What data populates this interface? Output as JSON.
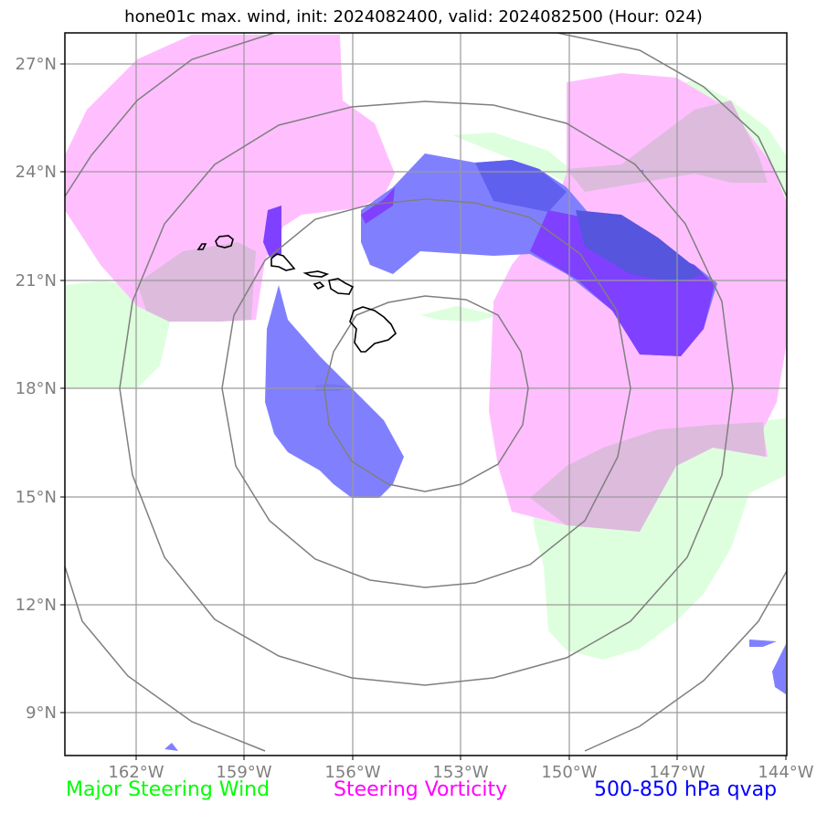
{
  "title": "hone01c max. wind, init: 2024082400, valid: 2024082500 (Hour: 024)",
  "axes": {
    "lat_labels": [
      "27°N",
      "24°N",
      "21°N",
      "18°N",
      "15°N",
      "12°N",
      "9°N"
    ],
    "lon_labels": [
      "162°W",
      "159°W",
      "156°W",
      "153°W",
      "150°W",
      "147°W",
      "144°W"
    ]
  },
  "legend": {
    "wind": "Major Steering Wind",
    "vorticity": "Steering Vorticity",
    "qvap": "500-850 hPa qvap"
  },
  "colors": {
    "wind": "#00ff00",
    "vorticity": "#ff00ff",
    "qvap": "#0000ff",
    "grid": "#999999",
    "range_rings": "#808080"
  },
  "storm_center": {
    "lon": -154.1,
    "lat": 17.2
  }
}
